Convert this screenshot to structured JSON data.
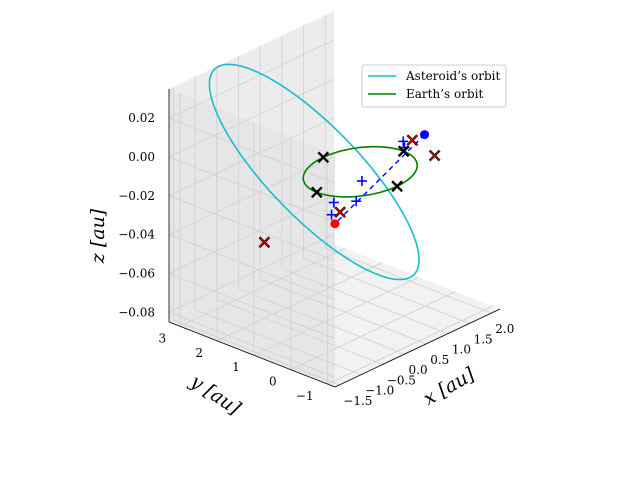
{
  "chart_data": {
    "type": "line",
    "projection": "3d",
    "xlabel": "x [au]",
    "ylabel": "y [au]",
    "zlabel": "z [au]",
    "x_ticks": [
      "−1.5",
      "−1.0",
      "−0.5",
      "0.0",
      "0.5",
      "1.0",
      "1.5",
      "2.0"
    ],
    "y_ticks": [
      "−1",
      "0",
      "1",
      "2",
      "3"
    ],
    "z_ticks": [
      "−0.08",
      "−0.06",
      "−0.04",
      "−0.02",
      "0.00",
      "0.02"
    ],
    "xlim": [
      -1.6,
      2.2
    ],
    "ylim": [
      -1.2,
      3.3
    ],
    "zlim": [
      -0.085,
      0.035
    ],
    "grid": true,
    "legend": {
      "placement": "top-right"
    },
    "series": [
      {
        "name": "Asteroid’s orbit",
        "color": "#17becf",
        "kind": "ellipse",
        "semi_major_axis": 1.85,
        "eccentricity": 0.45,
        "z_amplitude": 0.057
      },
      {
        "name": "Earth’s orbit",
        "color": "#008000",
        "kind": "circle",
        "radius": 1.0,
        "z": 0.0
      }
    ],
    "markers": {
      "earth_points": [
        [
          1.0,
          0.0,
          0.0
        ],
        [
          0.0,
          1.0,
          0.0
        ],
        [
          -1.0,
          0.0,
          0.0
        ],
        [
          0.0,
          -1.0,
          0.0
        ]
      ],
      "asteroid_points": [
        [
          -0.55,
          1.95,
          -0.045
        ],
        [
          -0.25,
          0.25,
          -0.02
        ],
        [
          0.95,
          -0.9,
          0.005
        ],
        [
          0.35,
          -1.0,
          0.02
        ]
      ],
      "plus_points": [
        [
          0.38,
          -0.72,
          0.017
        ],
        [
          0.85,
          -0.2,
          0.005
        ],
        [
          0.55,
          0.6,
          -0.015
        ],
        [
          0.2,
          0.95,
          -0.025
        ],
        [
          -0.15,
          0.6,
          -0.025
        ],
        [
          -0.05,
          0.05,
          -0.015
        ]
      ],
      "start_point": [
        0.42,
        -1.25,
        0.024
      ],
      "end_point": [
        -0.2,
        0.45,
        -0.028
      ],
      "colors": {
        "cross": "#000000",
        "asteroid_cross": "#ff0000",
        "plus": "#0000ff",
        "start": "#0000ff",
        "end": "#ff0000"
      }
    }
  }
}
